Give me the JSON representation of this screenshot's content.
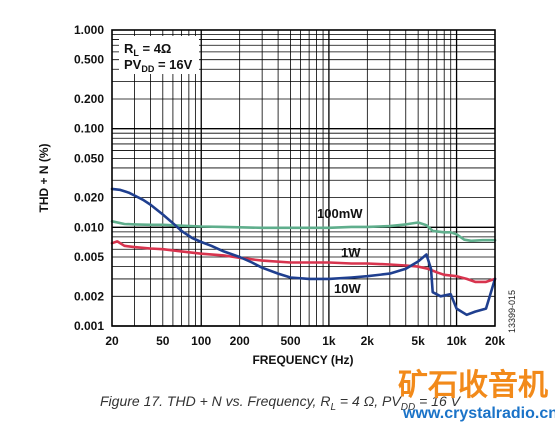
{
  "chart_data": {
    "type": "line",
    "xlabel": "FREQUENCY (Hz)",
    "ylabel": "THD + N (%)",
    "xscale": "log",
    "yscale": "log",
    "xlim": [
      20,
      20000
    ],
    "ylim": [
      0.001,
      1
    ],
    "grid": true,
    "x_tick_labels": [
      {
        "value": 20,
        "label": "20"
      },
      {
        "value": 50,
        "label": "50"
      },
      {
        "value": 100,
        "label": "100"
      },
      {
        "value": 200,
        "label": "200"
      },
      {
        "value": 500,
        "label": "500"
      },
      {
        "value": 1000,
        "label": "1k"
      },
      {
        "value": 2000,
        "label": "2k"
      },
      {
        "value": 5000,
        "label": "5k"
      },
      {
        "value": 10000,
        "label": "10k"
      },
      {
        "value": 20000,
        "label": "20k"
      }
    ],
    "y_tick_labels": [
      {
        "value": 1,
        "label": "1.000"
      },
      {
        "value": 0.5,
        "label": "0.500"
      },
      {
        "value": 0.2,
        "label": "0.200"
      },
      {
        "value": 0.1,
        "label": "0.100"
      },
      {
        "value": 0.05,
        "label": "0.050"
      },
      {
        "value": 0.02,
        "label": "0.020"
      },
      {
        "value": 0.01,
        "label": "0.010"
      },
      {
        "value": 0.005,
        "label": "0.005"
      },
      {
        "value": 0.002,
        "label": "0.002"
      },
      {
        "value": 0.001,
        "label": "0.001"
      }
    ],
    "conditions": {
      "rl_prefix": "R",
      "rl_sub": "L",
      "rl_value": " = 4Ω",
      "pv_prefix": "PV",
      "pv_sub": "DD",
      "pv_value": " = 16V"
    },
    "series": [
      {
        "name": "100mW",
        "color": "#5fae8c",
        "points": [
          [
            20,
            0.0115
          ],
          [
            25,
            0.0108
          ],
          [
            30,
            0.0107
          ],
          [
            40,
            0.0106
          ],
          [
            50,
            0.0106
          ],
          [
            70,
            0.0104
          ],
          [
            100,
            0.0102
          ],
          [
            150,
            0.0101
          ],
          [
            200,
            0.01
          ],
          [
            300,
            0.0099
          ],
          [
            500,
            0.0099
          ],
          [
            700,
            0.0099
          ],
          [
            1000,
            0.0099
          ],
          [
            1500,
            0.0101
          ],
          [
            2000,
            0.0101
          ],
          [
            3000,
            0.0103
          ],
          [
            4000,
            0.0107
          ],
          [
            5000,
            0.0112
          ],
          [
            5800,
            0.0105
          ],
          [
            6500,
            0.0092
          ],
          [
            8000,
            0.0089
          ],
          [
            9000,
            0.0089
          ],
          [
            10000,
            0.0085
          ],
          [
            11500,
            0.0075
          ],
          [
            13000,
            0.0073
          ],
          [
            16000,
            0.0074
          ],
          [
            20000,
            0.0074
          ]
        ]
      },
      {
        "name": "1W",
        "color": "#d8344e",
        "points": [
          [
            20,
            0.0069
          ],
          [
            22,
            0.0072
          ],
          [
            25,
            0.0065
          ],
          [
            30,
            0.0063
          ],
          [
            40,
            0.0061
          ],
          [
            50,
            0.006
          ],
          [
            70,
            0.0057
          ],
          [
            100,
            0.0054
          ],
          [
            150,
            0.0052
          ],
          [
            200,
            0.0049
          ],
          [
            300,
            0.0046
          ],
          [
            500,
            0.0044
          ],
          [
            700,
            0.0044
          ],
          [
            1000,
            0.0044
          ],
          [
            1500,
            0.0043
          ],
          [
            2000,
            0.0043
          ],
          [
            3000,
            0.0042
          ],
          [
            4000,
            0.0041
          ],
          [
            5000,
            0.004
          ],
          [
            6000,
            0.0038
          ],
          [
            7000,
            0.0035
          ],
          [
            8000,
            0.0033
          ],
          [
            10000,
            0.0032
          ],
          [
            12000,
            0.003
          ],
          [
            14000,
            0.0028
          ],
          [
            17000,
            0.0028
          ],
          [
            20000,
            0.003
          ]
        ]
      },
      {
        "name": "10W",
        "color": "#1f3f8f",
        "points": [
          [
            20,
            0.0245
          ],
          [
            23,
            0.024
          ],
          [
            27,
            0.0225
          ],
          [
            30,
            0.021
          ],
          [
            35,
            0.019
          ],
          [
            40,
            0.017
          ],
          [
            50,
            0.0135
          ],
          [
            60,
            0.011
          ],
          [
            70,
            0.0092
          ],
          [
            85,
            0.0078
          ],
          [
            100,
            0.0071
          ],
          [
            120,
            0.0065
          ],
          [
            150,
            0.0057
          ],
          [
            200,
            0.005
          ],
          [
            250,
            0.0044
          ],
          [
            300,
            0.0039
          ],
          [
            400,
            0.0034
          ],
          [
            500,
            0.0031
          ],
          [
            700,
            0.003
          ],
          [
            1000,
            0.003
          ],
          [
            1500,
            0.0031
          ],
          [
            2000,
            0.0032
          ],
          [
            3000,
            0.0034
          ],
          [
            4000,
            0.0038
          ],
          [
            5000,
            0.0045
          ],
          [
            5800,
            0.0053
          ],
          [
            6300,
            0.0038
          ],
          [
            6500,
            0.0022
          ],
          [
            7500,
            0.002
          ],
          [
            9000,
            0.0021
          ],
          [
            10000,
            0.0015
          ],
          [
            12000,
            0.0013
          ],
          [
            14000,
            0.0014
          ],
          [
            17000,
            0.0015
          ],
          [
            20000,
            0.003
          ]
        ]
      }
    ],
    "annotations": [
      {
        "text": "100mW",
        "series": "100mW"
      },
      {
        "text": "1W",
        "series": "1W"
      },
      {
        "text": "10W",
        "series": "10W"
      }
    ],
    "figure_id": "13399-015",
    "caption": {
      "prefix": "Figure 17. THD + N vs. Frequency, R",
      "rl_sub": "L",
      "mid": " = 4 Ω, PV",
      "pv_sub": "DD",
      "suffix": " = 16 V"
    }
  },
  "watermark": {
    "cn_text": "矿石收音机",
    "url": "www.crystalradio.cn"
  }
}
